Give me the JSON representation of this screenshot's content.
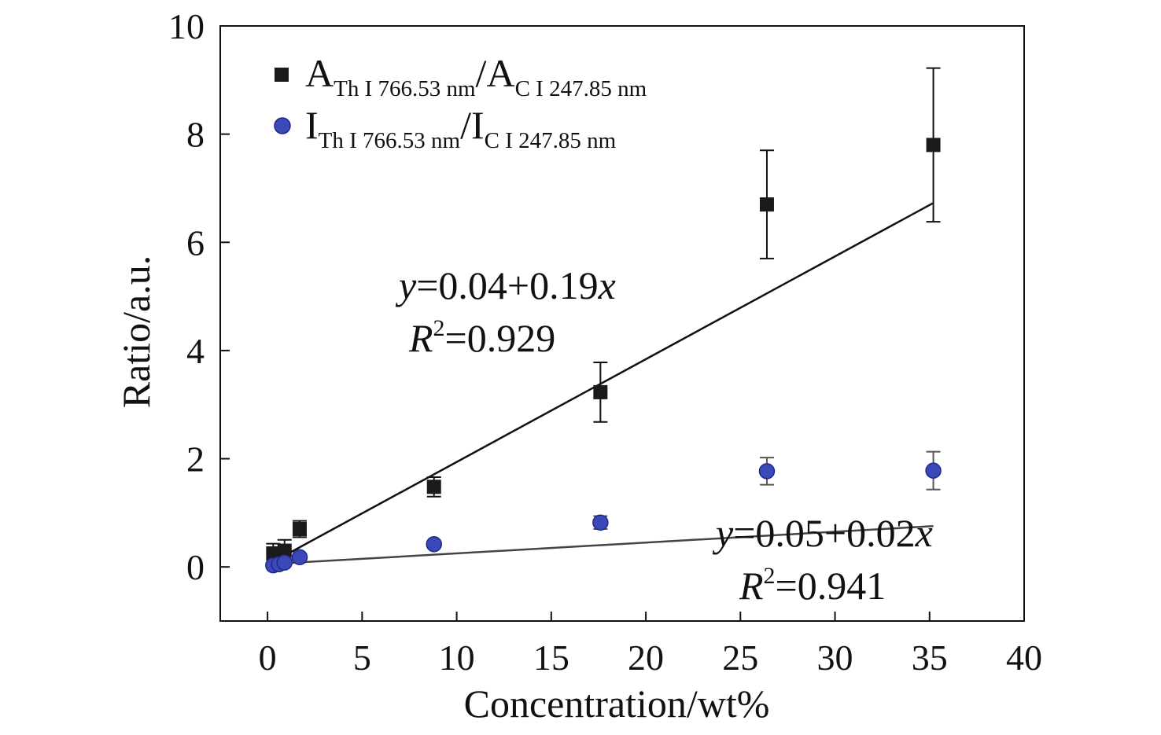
{
  "chart_data": {
    "type": "scatter",
    "xlabel": "Concentration/wt%",
    "ylabel": "Ratio/a.u.",
    "xlim": [
      -2.5,
      40
    ],
    "ylim": [
      -1,
      10
    ],
    "xticks": [
      0,
      5,
      10,
      15,
      20,
      25,
      30,
      35,
      40
    ],
    "yticks": [
      0,
      2,
      4,
      6,
      8,
      10
    ],
    "xtick_labels": [
      "0",
      "5",
      "10",
      "15",
      "20",
      "25",
      "30",
      "35",
      "40"
    ],
    "ytick_labels": [
      "0",
      "2",
      "4",
      "6",
      "8",
      "10"
    ],
    "grid": false,
    "legend_position": "top-left",
    "series": [
      {
        "name_parts": {
          "a": "A",
          "a_sub": "Th I 766.53 nm",
          "slash": "/",
          "b": "A",
          "b_sub": "C I 247.85 nm"
        },
        "marker": "square",
        "color": "#1a1a1a",
        "x": [
          0.3,
          0.6,
          0.9,
          1.7,
          8.8,
          17.6,
          26.4,
          35.2
        ],
        "y": [
          0.25,
          0.2,
          0.3,
          0.7,
          1.48,
          3.23,
          6.7,
          7.8
        ],
        "err": [
          0.18,
          0.15,
          0.2,
          0.15,
          0.18,
          0.55,
          1.0,
          1.42
        ],
        "fit": {
          "intercept": 0.04,
          "slope": 0.19,
          "x_range": [
            0.3,
            35.2
          ]
        },
        "annotation": {
          "eq_y": "y",
          "eq_rest": "=0.04+0.19",
          "eq_x": "x",
          "r": "R",
          "r_sup": "2",
          "r_rest": "=0.929"
        }
      },
      {
        "name_parts": {
          "a": "I",
          "a_sub": "Th I 766.53 nm",
          "slash": "/",
          "b": "I",
          "b_sub": "C I 247.85 nm"
        },
        "marker": "circle",
        "color": "#3a48b8",
        "x": [
          0.3,
          0.6,
          0.9,
          1.7,
          8.8,
          17.6,
          26.4,
          35.2
        ],
        "y": [
          0.03,
          0.05,
          0.08,
          0.18,
          0.42,
          0.82,
          1.77,
          1.78
        ],
        "err": [
          0.03,
          0.03,
          0.04,
          0.05,
          0.05,
          0.12,
          0.25,
          0.35
        ],
        "fit": {
          "intercept": 0.05,
          "slope": 0.02,
          "x_range": [
            0.3,
            35.2
          ]
        },
        "annotation": {
          "eq_y": "y",
          "eq_rest": "=0.05+0.02",
          "eq_x": "x",
          "r": "R",
          "r_sup": "2",
          "r_rest": "=0.941"
        }
      }
    ]
  }
}
